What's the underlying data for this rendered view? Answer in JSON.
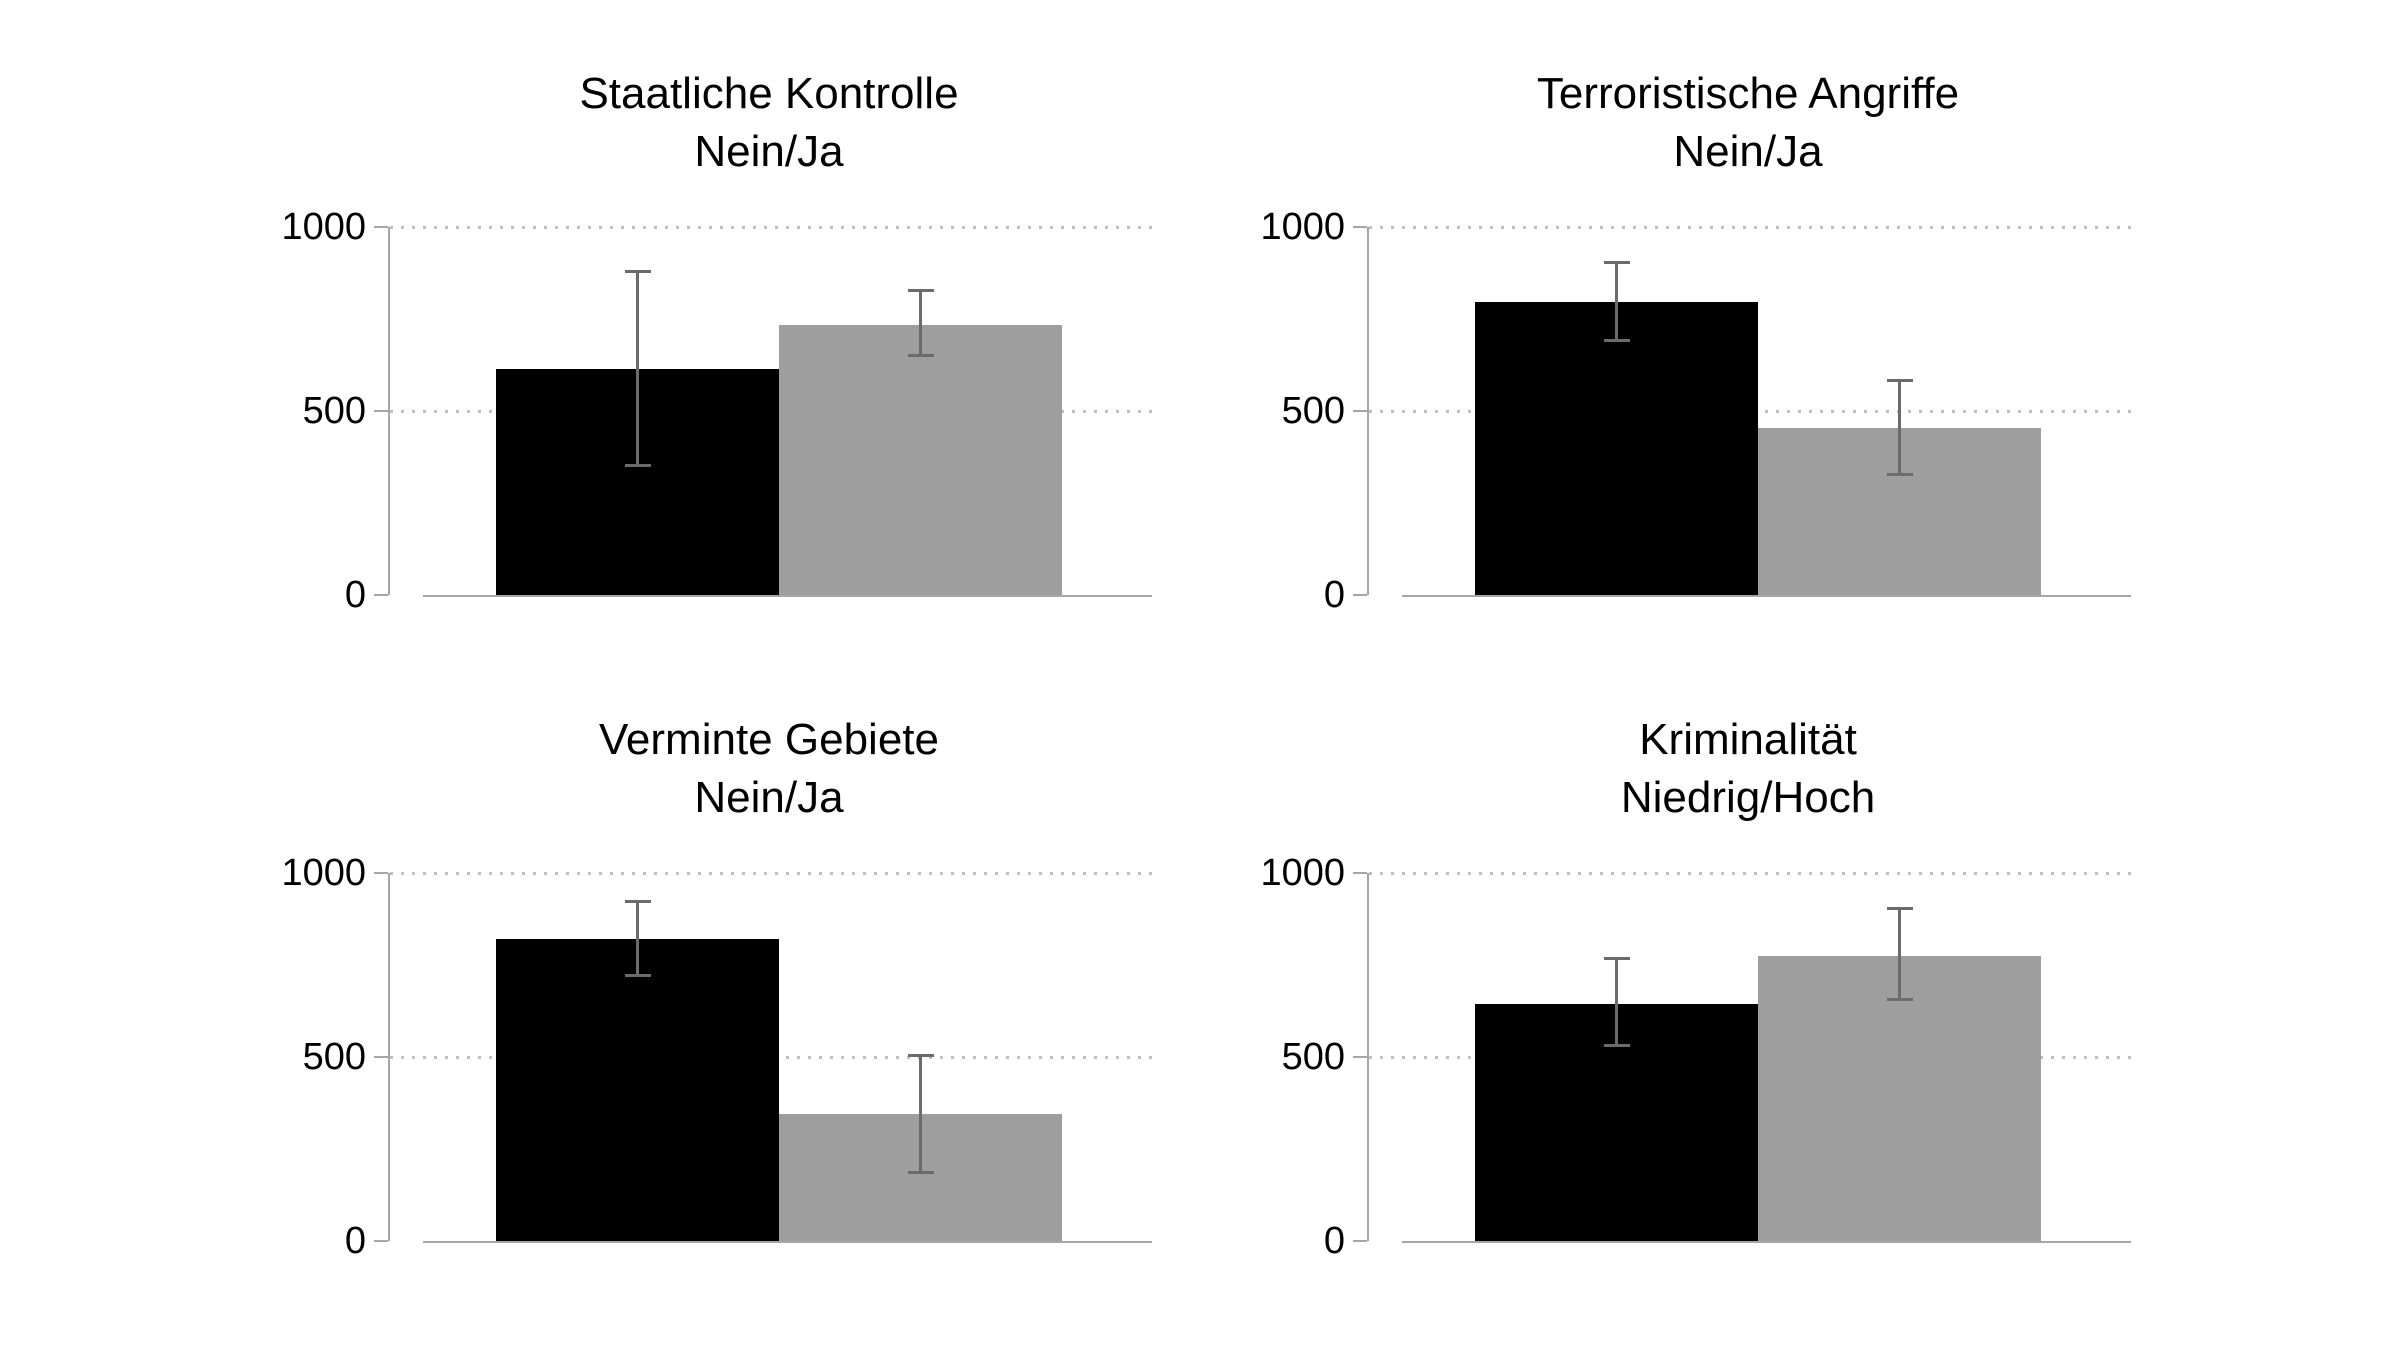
{
  "figure": {
    "background": "#ffffff",
    "text_color": "#000000"
  },
  "chart_data": {
    "type": "bar",
    "layout": "2x2-panel-grid",
    "ylim": [
      0,
      1000
    ],
    "grid": "dotted horizontal lines at 500 and 1000",
    "legend": "none",
    "y_ticks": [
      {
        "label": "0",
        "value": 0
      },
      {
        "label": "500",
        "value": 500
      },
      {
        "label": "1000",
        "value": 1000
      }
    ],
    "grid_levels": [
      500,
      1000
    ],
    "colors": {
      "bar_first": "#000000",
      "bar_second": "#9e9e9e",
      "error_bar": "#6b6b6b",
      "axis": "#a6a6a6",
      "grid": "#bfbfbf",
      "background": "#ffffff"
    },
    "panels": [
      {
        "id": "staatliche-kontrolle",
        "title_line1": "Staatliche Kontrolle",
        "title_line2": "Nein/Ja",
        "bars": [
          {
            "category": "Nein",
            "value": 615,
            "ci_low": 350,
            "ci_high": 880
          },
          {
            "category": "Ja",
            "value": 735,
            "ci_low": 650,
            "ci_high": 830
          }
        ]
      },
      {
        "id": "terroristische-angriffe",
        "title_line1": "Terroristische Angriffe",
        "title_line2": "Nein/Ja",
        "bars": [
          {
            "category": "Nein",
            "value": 795,
            "ci_low": 690,
            "ci_high": 905
          },
          {
            "category": "Ja",
            "value": 455,
            "ci_low": 325,
            "ci_high": 585
          }
        ]
      },
      {
        "id": "verminte-gebiete",
        "title_line1": "Verminte Gebiete",
        "title_line2": "Nein/Ja",
        "bars": [
          {
            "category": "Nein",
            "value": 820,
            "ci_low": 720,
            "ci_high": 925
          },
          {
            "category": "Ja",
            "value": 345,
            "ci_low": 185,
            "ci_high": 505
          }
        ]
      },
      {
        "id": "kriminalitaet",
        "title_line1": "Kriminalität",
        "title_line2": "Niedrig/Hoch",
        "bars": [
          {
            "category": "Niedrig",
            "value": 645,
            "ci_low": 530,
            "ci_high": 770
          },
          {
            "category": "Hoch",
            "value": 775,
            "ci_low": 655,
            "ci_high": 905
          }
        ]
      }
    ]
  }
}
